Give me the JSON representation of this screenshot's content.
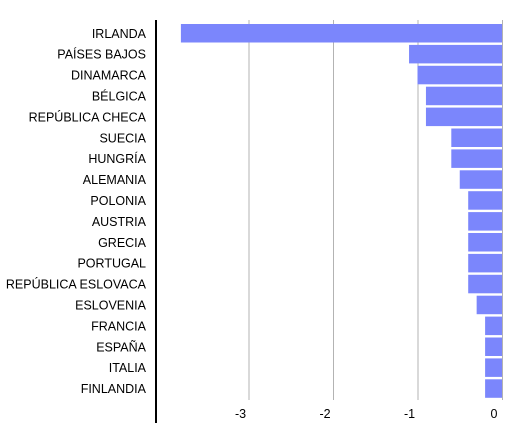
{
  "chart_data": {
    "type": "bar",
    "orientation": "horizontal",
    "title": "",
    "xlabel": "",
    "ylabel": "",
    "categories": [
      "IRLANDA",
      "PAÍSES BAJOS",
      "DINAMARCA",
      "BÉLGICA",
      "REPÚBLICA CHECA",
      "SUECIA",
      "HUNGRÍA",
      "ALEMANIA",
      "POLONIA",
      "AUSTRIA",
      "GRECIA",
      "PORTUGAL",
      "REPÚBLICA ESLOVACA",
      "ESLOVENIA",
      "FRANCIA",
      "ESPAÑA",
      "ITALIA",
      "FINLANDIA"
    ],
    "values": [
      -3.8,
      -1.1,
      -1.0,
      -0.9,
      -0.9,
      -0.6,
      -0.6,
      -0.5,
      -0.4,
      -0.4,
      -0.4,
      -0.4,
      -0.4,
      -0.3,
      -0.2,
      -0.2,
      -0.2,
      -0.2
    ],
    "xlim": [
      -4,
      0
    ],
    "xticks": [
      -3,
      -2,
      -1,
      0
    ],
    "xtick_labels": [
      "-3",
      "-2",
      "-1",
      "0"
    ],
    "grid": true,
    "legend": "none",
    "bar_color": "#7b86fc",
    "axis_color": "#000000",
    "grid_color": "#b3b3b3"
  }
}
